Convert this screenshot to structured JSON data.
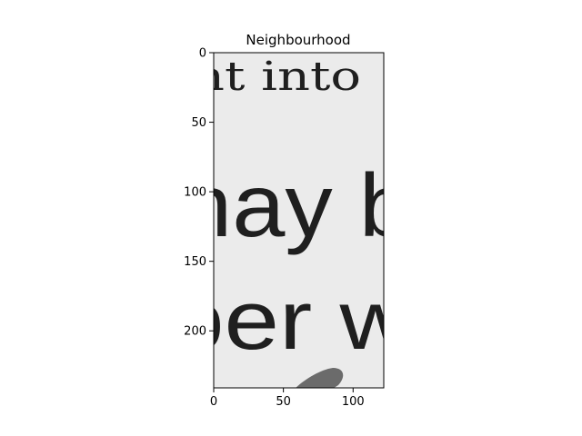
{
  "chart_data": {
    "type": "heatmap",
    "title": "Neighbourhood",
    "xlabel": "",
    "ylabel": "",
    "xlim": [
      0,
      122
    ],
    "ylim": [
      241,
      0
    ],
    "colormap": "gray",
    "grid": false,
    "xticks": [
      "0",
      "50",
      "100"
    ],
    "yticks": [
      "0",
      "50",
      "100",
      "150",
      "200"
    ],
    "image_text_lines": [
      {
        "text": "nt into",
        "style": "serif"
      },
      {
        "text": "nay b",
        "style": "sans"
      },
      {
        "text": "per w",
        "style": "sans"
      }
    ],
    "background_color": "#ebebeb",
    "ink_color": "#1f1f1f"
  }
}
